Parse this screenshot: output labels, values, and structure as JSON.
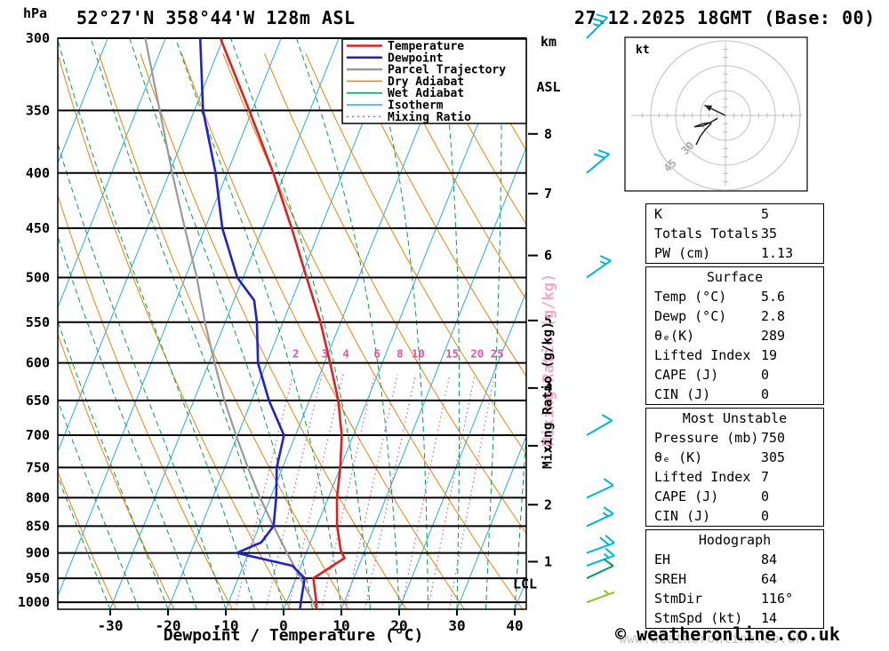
{
  "header": {
    "pressure_unit": "hPa",
    "title": "52°27'N 358°44'W 128m ASL",
    "datetime": "27.12.2025 18GMT (Base: 00)",
    "km_line1": "km",
    "km_line2": "ASL"
  },
  "footer": {
    "xlabel": "Dewpoint / Temperature (°C)",
    "watermark": "www.weatheronline.co.uk",
    "copyright": "© weatheronline.co.uk"
  },
  "legend": {
    "items": [
      "Temperature",
      "Dewpoint",
      "Parcel Trajectory",
      "Dry Adiabat",
      "Wet Adiabat",
      "Isotherm",
      "Mixing Ratio"
    ]
  },
  "colors": {
    "temperature": "#dd2020",
    "dewpoint": "#2020cc",
    "parcel": "#9a9a9a",
    "dry_adiabat": "#ef8309",
    "wet_adiabat": "#00a050",
    "isotherm": "#25aee0",
    "mixing_ratio": "#e8549b",
    "mixing_ratio_label_pink": "#f2aacb",
    "barb_upper": "#00b6d8",
    "barb_950": "#00a050",
    "barb_surface": "#8fc320",
    "grid_black": "#000000",
    "hodo_gray": "#c0c0c0"
  },
  "chart_data": {
    "type": "skewt_log_p_sounding",
    "station": "52°27'N 358°44'W 128m ASL",
    "valid": "27.12.2025 18GMT (Base: 00)",
    "pressure_axis": {
      "unit": "hPa",
      "ticks": [
        300,
        350,
        400,
        450,
        500,
        550,
        600,
        650,
        700,
        750,
        800,
        850,
        900,
        950,
        1000
      ],
      "range": [
        300,
        1015
      ]
    },
    "temp_axis": {
      "unit": "°C",
      "label": "Dewpoint / Temperature (°C)",
      "ticks": [
        -30,
        -20,
        -10,
        0,
        10,
        20,
        30,
        40
      ]
    },
    "km_axis": {
      "label": "km ASL",
      "ticks": [
        {
          "km": 1,
          "p": 917
        },
        {
          "km": 2,
          "p": 812
        },
        {
          "km": 3,
          "p": 716
        },
        {
          "km": 4,
          "p": 633
        },
        {
          "km": 5,
          "p": 548
        },
        {
          "km": 6,
          "p": 477
        },
        {
          "km": 7,
          "p": 418
        },
        {
          "km": 8,
          "p": 368
        }
      ]
    },
    "mixing_ratio_lines": [
      2,
      3,
      4,
      6,
      8,
      10,
      15,
      20,
      25
    ],
    "mixing_ratio_axis_label": "Mixing Ratio (g/kg)",
    "lcl": {
      "label": "LCL",
      "pressure": 962
    },
    "temperature_profile": [
      [
        1013,
        5.6
      ],
      [
        1000,
        5.2
      ],
      [
        950,
        3.0
      ],
      [
        925,
        5.5
      ],
      [
        910,
        7.0
      ],
      [
        895,
        5.8
      ],
      [
        850,
        3.5
      ],
      [
        800,
        1.5
      ],
      [
        750,
        0.0
      ],
      [
        700,
        -2.0
      ],
      [
        650,
        -5.0
      ],
      [
        600,
        -9.0
      ],
      [
        550,
        -13.5
      ],
      [
        500,
        -19.0
      ],
      [
        450,
        -25.0
      ],
      [
        400,
        -32.0
      ],
      [
        350,
        -40.5
      ],
      [
        300,
        -50.5
      ]
    ],
    "dewpoint_profile": [
      [
        1013,
        2.8
      ],
      [
        1000,
        2.5
      ],
      [
        950,
        1.5
      ],
      [
        925,
        -1.5
      ],
      [
        900,
        -12.0
      ],
      [
        880,
        -8.5
      ],
      [
        850,
        -7.5
      ],
      [
        800,
        -9.0
      ],
      [
        750,
        -11.0
      ],
      [
        700,
        -12.0
      ],
      [
        650,
        -17.0
      ],
      [
        600,
        -21.5
      ],
      [
        550,
        -24.5
      ],
      [
        525,
        -26.5
      ],
      [
        500,
        -31.0
      ],
      [
        450,
        -37.0
      ],
      [
        400,
        -42.0
      ],
      [
        350,
        -48.5
      ],
      [
        300,
        -54.0
      ]
    ],
    "parcel_profile": [
      [
        1013,
        5.6
      ],
      [
        1000,
        4.6
      ],
      [
        950,
        0.8
      ],
      [
        900,
        -3.3
      ],
      [
        850,
        -7.5
      ],
      [
        800,
        -11.8
      ],
      [
        750,
        -16.0
      ],
      [
        700,
        -20.3
      ],
      [
        650,
        -24.7
      ],
      [
        600,
        -29.0
      ],
      [
        550,
        -33.5
      ],
      [
        500,
        -38.0
      ],
      [
        450,
        -43.5
      ],
      [
        400,
        -49.5
      ],
      [
        350,
        -56.0
      ],
      [
        300,
        -63.5
      ]
    ],
    "wind_barbs": [
      {
        "p": 300,
        "dir": 45,
        "kt": 25,
        "color": "#00b6d8"
      },
      {
        "p": 400,
        "dir": 50,
        "kt": 20,
        "color": "#00b6d8"
      },
      {
        "p": 500,
        "dir": 55,
        "kt": 15,
        "color": "#00b6d8"
      },
      {
        "p": 700,
        "dir": 60,
        "kt": 10,
        "color": "#00b6d8"
      },
      {
        "p": 800,
        "dir": 65,
        "kt": 10,
        "color": "#00b6d8"
      },
      {
        "p": 850,
        "dir": 65,
        "kt": 15,
        "color": "#00b6d8"
      },
      {
        "p": 900,
        "dir": 70,
        "kt": 20,
        "color": "#00b6d8"
      },
      {
        "p": 925,
        "dir": 70,
        "kt": 15,
        "color": "#00b6d8"
      },
      {
        "p": 950,
        "dir": 65,
        "kt": 10,
        "color": "#00a050"
      },
      {
        "p": 1000,
        "dir": 70,
        "kt": 5,
        "color": "#8fc320"
      }
    ],
    "hodograph": {
      "unit_label": "kt",
      "ring_step_kt": 15,
      "rings": [
        15,
        30,
        45
      ],
      "ring_labels": [
        "30",
        "45"
      ],
      "storm_motion": {
        "dir_deg": 116,
        "speed_kt": 14
      }
    }
  },
  "stats": {
    "sections": [
      {
        "header": null,
        "rows": [
          [
            "K",
            "5"
          ],
          [
            "Totals Totals",
            "35"
          ],
          [
            "PW (cm)",
            "1.13"
          ]
        ]
      },
      {
        "header": "Surface",
        "rows": [
          [
            "Temp (°C)",
            "5.6"
          ],
          [
            "Dewp (°C)",
            "2.8"
          ],
          [
            "θₑ(K)",
            "289"
          ],
          [
            "Lifted Index",
            "19"
          ],
          [
            "CAPE (J)",
            "0"
          ],
          [
            "CIN (J)",
            "0"
          ]
        ]
      },
      {
        "header": "Most Unstable",
        "rows": [
          [
            "Pressure (mb)",
            "750"
          ],
          [
            "θₑ (K)",
            "305"
          ],
          [
            "Lifted Index",
            "7"
          ],
          [
            "CAPE (J)",
            "0"
          ],
          [
            "CIN (J)",
            "0"
          ]
        ]
      },
      {
        "header": "Hodograph",
        "rows": [
          [
            "EH",
            "84"
          ],
          [
            "SREH",
            "64"
          ],
          [
            "StmDir",
            "116°"
          ],
          [
            "StmSpd (kt)",
            "14"
          ]
        ]
      }
    ]
  }
}
